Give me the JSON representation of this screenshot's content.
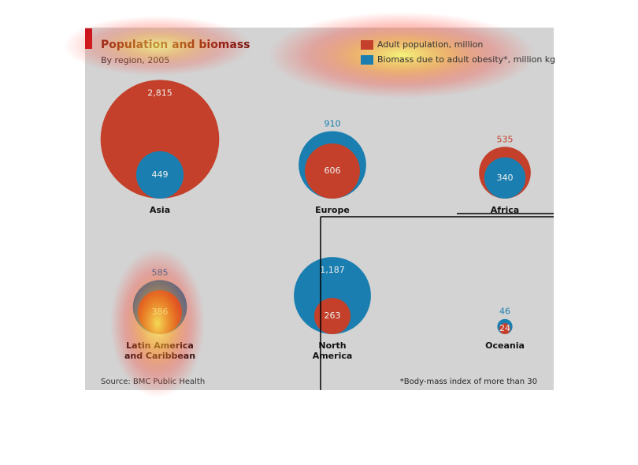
{
  "chart_data": {
    "type": "bubble",
    "title": "Population and biomass",
    "subtitle": "By region, 2005",
    "categories": [
      "Asia",
      "Europe",
      "Africa",
      [
        "Latin America",
        "and Caribbean"
      ],
      [
        "North",
        "America"
      ],
      "Oceania"
    ],
    "series": [
      {
        "name": "Adult population, million",
        "color": "#c4402a",
        "values": [
          2815,
          606,
          535,
          386,
          263,
          24
        ],
        "value_labels": [
          "2,815",
          "606",
          "535",
          "386",
          "263",
          "24"
        ]
      },
      {
        "name": "Biomass due to adult obesity*, million kg",
        "color": "#1a7fb0",
        "values": [
          449,
          910,
          340,
          585,
          1187,
          46
        ],
        "value_labels": [
          "449",
          "910",
          "340",
          "585",
          "1,187",
          "46"
        ]
      }
    ],
    "source": "Source: BMC Public Health",
    "note": "*Body-mass index of more than 30"
  }
}
